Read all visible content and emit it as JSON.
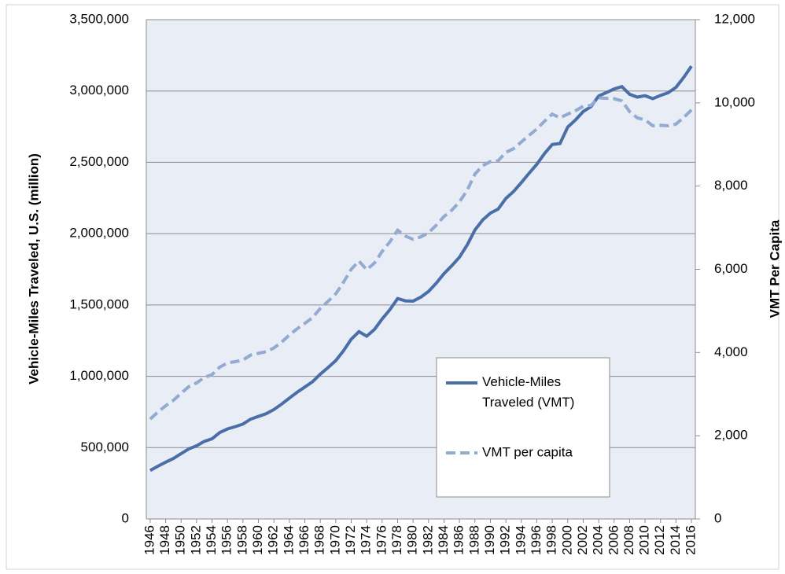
{
  "chart_data": {
    "type": "line",
    "x": [
      1946,
      1947,
      1948,
      1949,
      1950,
      1951,
      1952,
      1953,
      1954,
      1955,
      1956,
      1957,
      1958,
      1959,
      1960,
      1961,
      1962,
      1963,
      1964,
      1965,
      1966,
      1967,
      1968,
      1969,
      1970,
      1971,
      1972,
      1973,
      1974,
      1975,
      1976,
      1977,
      1978,
      1979,
      1980,
      1981,
      1982,
      1983,
      1984,
      1985,
      1986,
      1987,
      1988,
      1989,
      1990,
      1991,
      1992,
      1993,
      1994,
      1995,
      1996,
      1997,
      1998,
      1999,
      2000,
      2001,
      2002,
      2003,
      2004,
      2005,
      2006,
      2007,
      2008,
      2009,
      2010,
      2011,
      2012,
      2013,
      2014,
      2015,
      2016
    ],
    "xlim": [
      1945.5,
      2016.5
    ],
    "xticks": [
      1946,
      1948,
      1950,
      1952,
      1954,
      1956,
      1958,
      1960,
      1962,
      1964,
      1966,
      1968,
      1970,
      1972,
      1974,
      1976,
      1978,
      1980,
      1982,
      1984,
      1986,
      1988,
      1990,
      1992,
      1994,
      1996,
      1998,
      2000,
      2002,
      2004,
      2006,
      2008,
      2010,
      2012,
      2014,
      2016
    ],
    "ylabel": "Vehicle-Miles Traveled, U.S. (million)",
    "y2label": "VMT Per Capita",
    "ylim": [
      0,
      3500000
    ],
    "yticks": [
      {
        "value": 0,
        "label": "0"
      },
      {
        "value": 500000,
        "label": "500,000"
      },
      {
        "value": 1000000,
        "label": "1,000,000"
      },
      {
        "value": 1500000,
        "label": "1,500,000"
      },
      {
        "value": 2000000,
        "label": "2,000,000"
      },
      {
        "value": 2500000,
        "label": "2,500,000"
      },
      {
        "value": 3000000,
        "label": "3,000,000"
      },
      {
        "value": 3500000,
        "label": "3,500,000"
      }
    ],
    "y2lim": [
      0,
      12000
    ],
    "y2ticks": [
      0,
      {
        "value": 2000,
        "label": "2,000"
      },
      {
        "value": 4000,
        "label": "4,000"
      },
      {
        "value": 6000,
        "label": "6,000"
      },
      {
        "value": 8000,
        "label": "8,000"
      },
      {
        "value": 10000,
        "label": "10,000"
      },
      {
        "value": 12000,
        "label": "12,000"
      }
    ],
    "grid": true,
    "background": "#e9edf5",
    "series": [
      {
        "name": "Vehicle-Miles Traveled (VMT)",
        "color": "#4a6fa8",
        "line_style": "solid",
        "values": [
          340000,
          370000,
          398000,
          424000,
          458000,
          491000,
          513000,
          544000,
          562000,
          606000,
          631000,
          647000,
          665000,
          700000,
          719000,
          738000,
          767000,
          805000,
          847000,
          888000,
          925000,
          962000,
          1015000,
          1061000,
          1110000,
          1179000,
          1260000,
          1313000,
          1281000,
          1328000,
          1402000,
          1467000,
          1545000,
          1529000,
          1527000,
          1555000,
          1595000,
          1653000,
          1720000,
          1775000,
          1835000,
          1921000,
          2026000,
          2096000,
          2144000,
          2172000,
          2247000,
          2296000,
          2358000,
          2423000,
          2486000,
          2562000,
          2625000,
          2632000,
          2747000,
          2797000,
          2856000,
          2890000,
          2965000,
          2989000,
          3014000,
          3031000,
          2977000,
          2957000,
          2967000,
          2946000,
          2969000,
          2988000,
          3026000,
          3095000,
          3174000
        ]
      },
      {
        "name": "VMT per capita",
        "color": "#93aad2",
        "line_style": "dashed",
        "axis": "y2",
        "values": [
          2400,
          2570,
          2720,
          2850,
          3020,
          3180,
          3270,
          3400,
          3470,
          3650,
          3750,
          3780,
          3820,
          3940,
          3980,
          4020,
          4110,
          4250,
          4420,
          4570,
          4700,
          4840,
          5060,
          5230,
          5410,
          5690,
          6000,
          6200,
          5990,
          6150,
          6430,
          6660,
          6940,
          6800,
          6720,
          6780,
          6880,
          7060,
          7270,
          7420,
          7620,
          7900,
          8290,
          8490,
          8590,
          8610,
          8810,
          8900,
          9060,
          9220,
          9370,
          9560,
          9730,
          9640,
          9730,
          9810,
          9920,
          9940,
          10120,
          10110,
          10100,
          10050,
          9790,
          9640,
          9590,
          9450,
          9460,
          9450,
          9490,
          9650,
          9830
        ]
      }
    ]
  }
}
